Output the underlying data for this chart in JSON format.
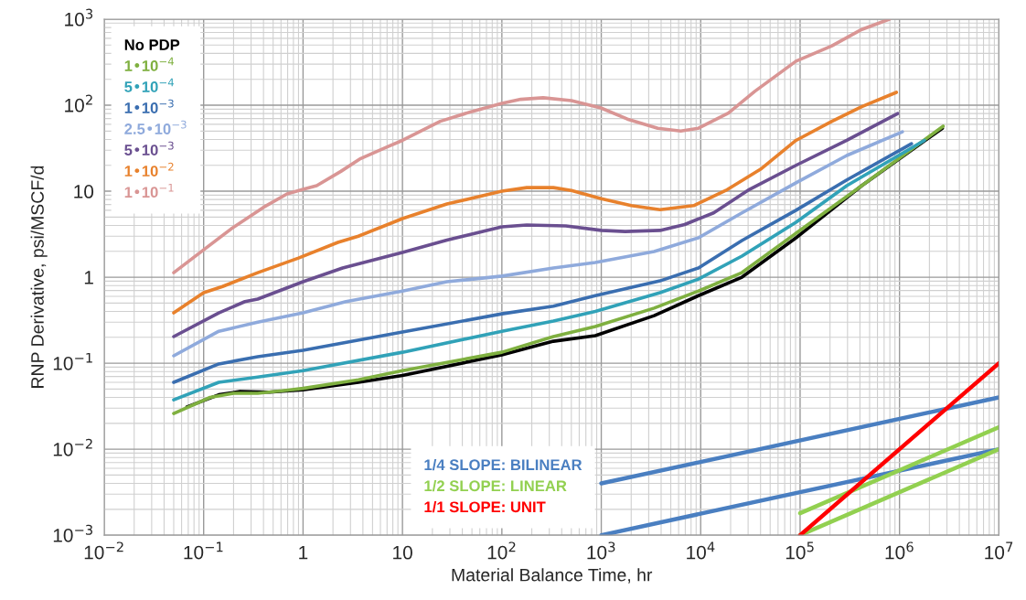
{
  "chart_data": {
    "type": "line",
    "xlabel": "Material Balance Time, hr",
    "ylabel": "RNP Derivative, psi/MSCF/d",
    "log": "xy",
    "grid": true,
    "legend": "top left",
    "xlim": [
      0.01,
      10000000
    ],
    "ylim": [
      0.001,
      1000
    ],
    "xticks": [
      {
        "value": 0.01,
        "label": "10$^{−2}$"
      },
      {
        "value": 0.1,
        "label": "10$^{−1}$"
      },
      1,
      10,
      {
        "value": 100,
        "label": "10$^{2}$"
      },
      {
        "value": 1000,
        "label": "10$^{3}$"
      },
      {
        "value": 10000,
        "label": "10$^{4}$"
      },
      {
        "value": 100000,
        "label": "10$^{5}$"
      },
      {
        "value": 1000000,
        "label": "10$^{6}$"
      },
      {
        "value": 10000000,
        "label": "10$^{7}$"
      }
    ],
    "yticks": [
      {
        "value": 0.001,
        "label": "10$^{−3}$"
      },
      {
        "value": 0.01,
        "label": "10$^{−2}$"
      },
      {
        "value": 0.1,
        "label": "10$^{−1}$"
      },
      1,
      10,
      {
        "value": 100,
        "label": "10$^{2}$"
      },
      {
        "value": 1000,
        "label": "10$^{3}$"
      }
    ],
    "series": [
      {
        "name": "No PDP",
        "color": "#000000",
        "x": [
          0.068,
          0.142,
          0.233,
          0.46,
          1,
          3.6,
          10,
          100,
          330,
          870,
          3400,
          9500,
          26000,
          91000,
          417000,
          2700000
        ],
        "values": [
          0.031,
          0.043,
          0.047,
          0.046,
          0.049,
          0.06,
          0.072,
          0.125,
          0.18,
          0.209,
          0.357,
          0.61,
          1.0,
          2.87,
          11.6,
          54
        ]
      },
      {
        "name": "1•10$^{−4}$",
        "color": "#7fb040",
        "x": [
          0.05,
          0.116,
          0.2,
          0.35,
          0.65,
          1,
          3.6,
          10,
          100,
          330,
          870,
          3400,
          9500,
          26000,
          91000,
          417000,
          2750000
        ],
        "values": [
          0.026,
          0.04,
          0.0447,
          0.0447,
          0.048,
          0.051,
          0.064,
          0.082,
          0.134,
          0.204,
          0.267,
          0.437,
          0.69,
          1.13,
          3.24,
          11.6,
          57
        ]
      },
      {
        "name": "5•10$^{−4}$",
        "color": "#31a2b8",
        "x": [
          0.05,
          0.142,
          0.35,
          1,
          10,
          100,
          330,
          870,
          3900,
          9500,
          26000,
          91000,
          295000,
          1780000
        ],
        "values": [
          0.0375,
          0.06,
          0.069,
          0.082,
          0.134,
          0.235,
          0.31,
          0.4,
          0.66,
          0.95,
          1.76,
          4.35,
          11.6,
          39
        ]
      },
      {
        "name": "1•10$^{−3}$",
        "color": "#3a6eb0",
        "x": [
          0.05,
          0.142,
          0.35,
          1,
          10,
          100,
          330,
          870,
          3900,
          9500,
          26000,
          91000,
          295000,
          1320000
        ],
        "values": [
          0.06,
          0.098,
          0.119,
          0.141,
          0.23,
          0.375,
          0.46,
          0.61,
          0.906,
          1.28,
          2.67,
          6.0,
          13.5,
          35.6
        ]
      },
      {
        "name": "2.5•10$^{−3}$",
        "color": "#8faadc",
        "x": [
          0.05,
          0.142,
          0.35,
          1,
          2.7,
          10,
          28,
          100,
          330,
          870,
          3400,
          9500,
          26000,
          91000,
          295000,
          1070000
        ],
        "values": [
          0.122,
          0.235,
          0.3,
          0.385,
          0.52,
          0.69,
          0.885,
          1.03,
          1.28,
          1.48,
          1.99,
          2.87,
          5.6,
          12.5,
          26,
          49
        ]
      },
      {
        "name": "5•10$^{−3}$",
        "color": "#6a4f90",
        "x": [
          0.05,
          0.142,
          0.26,
          0.35,
          1,
          2.5,
          10,
          28,
          100,
          178,
          440,
          1000,
          1740,
          3900,
          6900,
          13500,
          31000,
          91000,
          295000,
          960000
        ],
        "values": [
          0.204,
          0.385,
          0.52,
          0.556,
          0.885,
          1.28,
          1.94,
          2.7,
          3.85,
          4.04,
          3.95,
          3.5,
          3.4,
          3.5,
          4.1,
          5.6,
          10.5,
          20,
          39,
          80
        ]
      },
      {
        "name": "1•10$^{−2}$",
        "color": "#e8812c",
        "x": [
          0.05,
          0.1,
          0.155,
          0.35,
          0.9,
          2.24,
          3.6,
          7.1,
          10,
          28,
          100,
          178,
          330,
          500,
          1000,
          2000,
          3900,
          8500,
          17900,
          40000,
          91000,
          209000,
          417000,
          930000
        ],
        "values": [
          0.385,
          0.66,
          0.78,
          1.13,
          1.67,
          2.54,
          3.0,
          4.1,
          4.8,
          7.1,
          10,
          11.0,
          11.0,
          10.2,
          8.2,
          6.8,
          6.1,
          6.8,
          10.2,
          18,
          39,
          65,
          96,
          141
        ]
      },
      {
        "name": "1•10$^{−1}$",
        "color": "#d99594",
        "x": [
          0.05,
          0.1,
          0.19,
          0.4,
          0.69,
          1,
          1.37,
          2.4,
          3.8,
          7.1,
          10,
          24,
          49,
          100,
          155,
          260,
          500,
          990,
          1830,
          3700,
          6300,
          9500,
          19000,
          35000,
          91000,
          209000,
          417000,
          790000
        ],
        "values": [
          1.13,
          2.08,
          3.66,
          6.5,
          9.3,
          10.5,
          11.6,
          17,
          24,
          33,
          39,
          65,
          84,
          105,
          117,
          122,
          113,
          93,
          69,
          54,
          50,
          54,
          81,
          145,
          325,
          490,
          760,
          1000
        ]
      },
      {
        "name": "1/4 SLOPE: BILINEAR",
        "color": "#4a7fc1",
        "x": [
          1000,
          10000000
        ],
        "values": [
          0.004,
          0.04
        ]
      },
      {
        "color": "#4a7fc1",
        "x": [
          1000,
          10000000
        ],
        "values": [
          0.001,
          0.01
        ]
      },
      {
        "name": "1/2 SLOPE: LINEAR",
        "color": "#92d050",
        "x": [
          100000,
          10000000
        ],
        "values": [
          0.0018,
          0.018
        ]
      },
      {
        "color": "#92d050",
        "x": [
          100000,
          10000000
        ],
        "values": [
          0.001,
          0.01
        ]
      },
      {
        "name": "1/1 SLOPE: UNIT",
        "color": "#ff0000",
        "x": [
          100000,
          10000000
        ],
        "values": [
          0.001,
          0.1
        ]
      }
    ]
  }
}
